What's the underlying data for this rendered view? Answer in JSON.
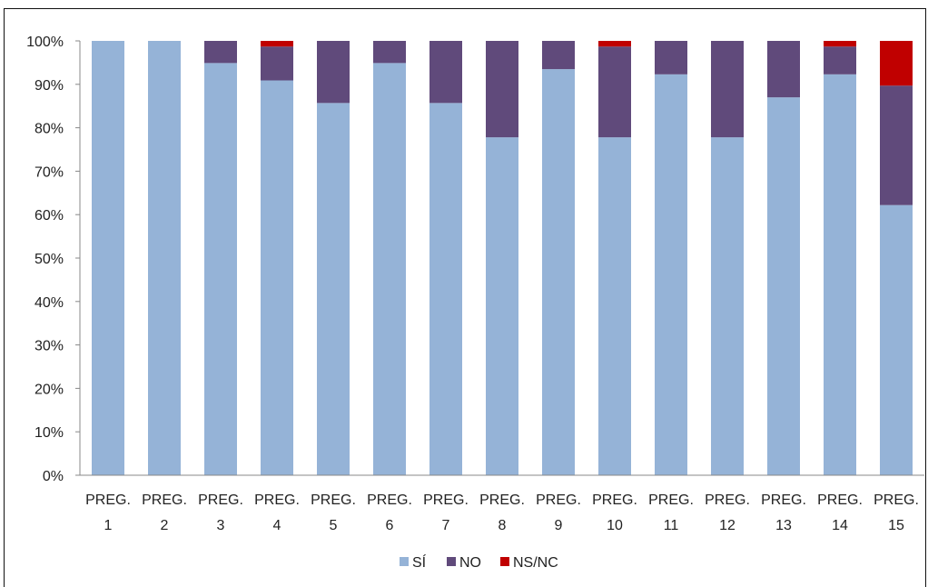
{
  "chart_data": {
    "type": "bar",
    "stacked": true,
    "percent": true,
    "title": "",
    "xlabel": "",
    "ylabel": "",
    "ylim": [
      0,
      100
    ],
    "y_ticks": [
      "0%",
      "10%",
      "20%",
      "30%",
      "40%",
      "50%",
      "60%",
      "70%",
      "80%",
      "90%",
      "100%"
    ],
    "grid": false,
    "legend_position": "bottom",
    "categories": [
      [
        "PREG.",
        "1"
      ],
      [
        "PREG.",
        "2"
      ],
      [
        "PREG.",
        "3"
      ],
      [
        "PREG.",
        "4"
      ],
      [
        "PREG.",
        "5"
      ],
      [
        "PREG.",
        "6"
      ],
      [
        "PREG.",
        "7"
      ],
      [
        "PREG.",
        "8"
      ],
      [
        "PREG.",
        "9"
      ],
      [
        "PREG.",
        "10"
      ],
      [
        "PREG.",
        "11"
      ],
      [
        "PREG.",
        "12"
      ],
      [
        "PREG.",
        "13"
      ],
      [
        "PREG.",
        "14"
      ],
      [
        "PREG.",
        "15"
      ]
    ],
    "series": [
      {
        "name": "SÍ",
        "color": "#95b3d7",
        "values": [
          100,
          100,
          94.9,
          90.9,
          85.7,
          94.9,
          85.7,
          77.8,
          93.5,
          77.8,
          92.3,
          77.8,
          87.0,
          92.3,
          62.2
        ]
      },
      {
        "name": "NO",
        "color": "#604a7b",
        "values": [
          0,
          0,
          5.1,
          7.8,
          14.3,
          5.1,
          14.3,
          22.2,
          6.5,
          20.9,
          7.7,
          22.2,
          13.0,
          6.4,
          27.5
        ]
      },
      {
        "name": "NS/NC",
        "color": "#c00000",
        "values": [
          0,
          0,
          0,
          1.3,
          0,
          0,
          0,
          0,
          0,
          1.3,
          0,
          0,
          0,
          1.3,
          10.3
        ]
      }
    ]
  }
}
